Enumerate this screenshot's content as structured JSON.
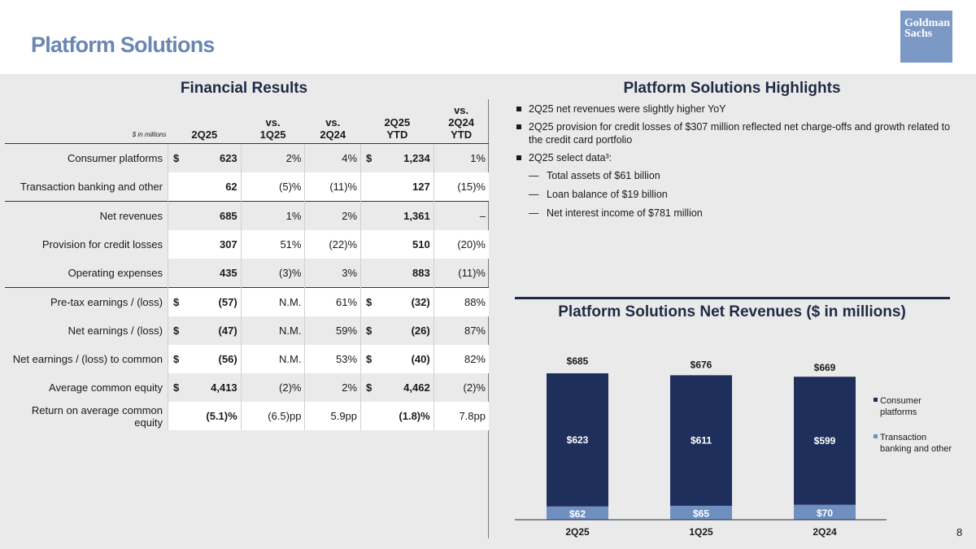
{
  "page": {
    "title": "Platform Solutions",
    "logo_line1": "Goldman",
    "logo_line2": "Sachs",
    "page_number": "8"
  },
  "financial": {
    "title": "Financial Results",
    "unit_note": "$ in millions",
    "columns": [
      "2Q25",
      "vs.\n1Q25",
      "vs.\n2Q24",
      "2Q25\nYTD",
      "vs.\n2Q24\nYTD"
    ],
    "rows": [
      {
        "label": "Consumer platforms",
        "cur1": "$",
        "q": "623",
        "v1": "2%",
        "v2": "4%",
        "cur2": "$",
        "ytd": "1,234",
        "v3": "1%",
        "rule": false
      },
      {
        "label": "Transaction banking and other",
        "cur1": "",
        "q": "62",
        "v1": "(5)%",
        "v2": "(11)%",
        "cur2": "",
        "ytd": "127",
        "v3": "(15)%",
        "rule": false
      },
      {
        "label": "Net revenues",
        "cur1": "",
        "q": "685",
        "v1": "1%",
        "v2": "2%",
        "cur2": "",
        "ytd": "1,361",
        "v3": "–",
        "rule": true
      },
      {
        "label": "Provision for credit losses",
        "cur1": "",
        "q": "307",
        "v1": "51%",
        "v2": "(22)%",
        "cur2": "",
        "ytd": "510",
        "v3": "(20)%",
        "rule": false
      },
      {
        "label": "Operating expenses",
        "cur1": "",
        "q": "435",
        "v1": "(3)%",
        "v2": "3%",
        "cur2": "",
        "ytd": "883",
        "v3": "(11)%",
        "rule": false
      },
      {
        "label": "Pre-tax earnings / (loss)",
        "cur1": "$",
        "q": "(57)",
        "v1": "N.M.",
        "v2": "61%",
        "cur2": "$",
        "ytd": "(32)",
        "v3": "88%",
        "rule": true
      },
      {
        "label": "Net earnings / (loss)",
        "cur1": "$",
        "q": "(47)",
        "v1": "N.M.",
        "v2": "59%",
        "cur2": "$",
        "ytd": "(26)",
        "v3": "87%",
        "rule": false
      },
      {
        "label": "Net earnings / (loss) to common",
        "cur1": "$",
        "q": "(56)",
        "v1": "N.M.",
        "v2": "53%",
        "cur2": "$",
        "ytd": "(40)",
        "v3": "82%",
        "rule": false
      },
      {
        "label": "Average common equity",
        "cur1": "$",
        "q": "4,413",
        "v1": "(2)%",
        "v2": "2%",
        "cur2": "$",
        "ytd": "4,462",
        "v3": "(2)%",
        "rule": false
      },
      {
        "label": "Return on average common equity",
        "cur1": "",
        "q": "(5.1)%",
        "v1": "(6.5)pp",
        "v2": "5.9pp",
        "cur2": "",
        "ytd": "(1.8)%",
        "v3": "7.8pp",
        "rule": false
      }
    ]
  },
  "highlights": {
    "title": "Platform Solutions Highlights",
    "bullets": [
      "2Q25 net revenues were slightly higher YoY",
      "2Q25 provision for credit losses of $307 million reflected net charge-offs and growth related to the credit card portfolio",
      "2Q25 select data³:"
    ],
    "sub_bullets": [
      "Total assets of $61 billion",
      "Loan balance of $19 billion",
      "Net interest income of $781 million"
    ]
  },
  "chart_data": {
    "type": "bar",
    "stacked": true,
    "title": "Platform Solutions Net Revenues ($ in millions)",
    "categories": [
      "2Q25",
      "1Q25",
      "2Q24"
    ],
    "series": [
      {
        "name": "Transaction banking and other",
        "values": [
          62,
          65,
          70
        ],
        "labels": [
          "$62",
          "$65",
          "$70"
        ],
        "color": "#6f8fc0"
      },
      {
        "name": "Consumer platforms",
        "values": [
          623,
          611,
          599
        ],
        "labels": [
          "$623",
          "$611",
          "$599"
        ],
        "color": "#1f2f5c"
      }
    ],
    "totals": [
      685,
      676,
      669
    ],
    "total_labels": [
      "$685",
      "$676",
      "$669"
    ],
    "legend": [
      "Consumer platforms",
      "Transaction banking and other"
    ],
    "legend_position": "right",
    "ylim": [
      0,
      685
    ]
  }
}
